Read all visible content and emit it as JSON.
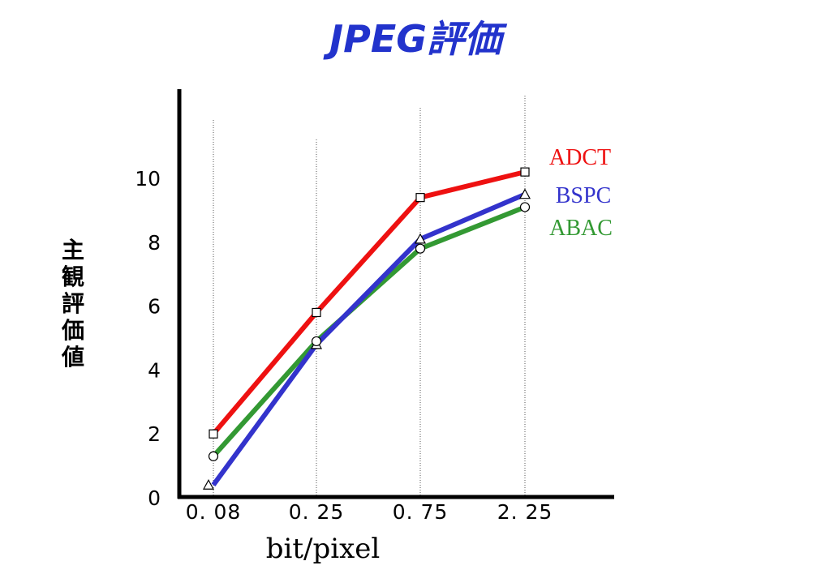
{
  "chart_data": {
    "type": "line",
    "title": "JPEG評価",
    "xlabel": "bit/pixel",
    "ylabel": "主観評価値",
    "categories": [
      "0. 08",
      "0. 25",
      "0. 75",
      "2. 25"
    ],
    "yticks": [
      "0",
      "2",
      "4",
      "6",
      "8",
      "10"
    ],
    "ylim": [
      0,
      10
    ],
    "grid": "vertical dotted lines at categories",
    "legend": "right",
    "series": [
      {
        "name": "ADCT",
        "color": "#ee1111",
        "marker": "square",
        "values": [
          2.0,
          5.8,
          9.4,
          10.2
        ]
      },
      {
        "name": "BSPC",
        "color": "#3333cc",
        "marker": "triangle",
        "values": [
          0.4,
          4.8,
          8.1,
          9.5
        ]
      },
      {
        "name": "ABAC",
        "color": "#339933",
        "marker": "circle",
        "values": [
          1.3,
          4.9,
          7.8,
          9.1
        ]
      }
    ],
    "title_color": "#2233cc"
  }
}
